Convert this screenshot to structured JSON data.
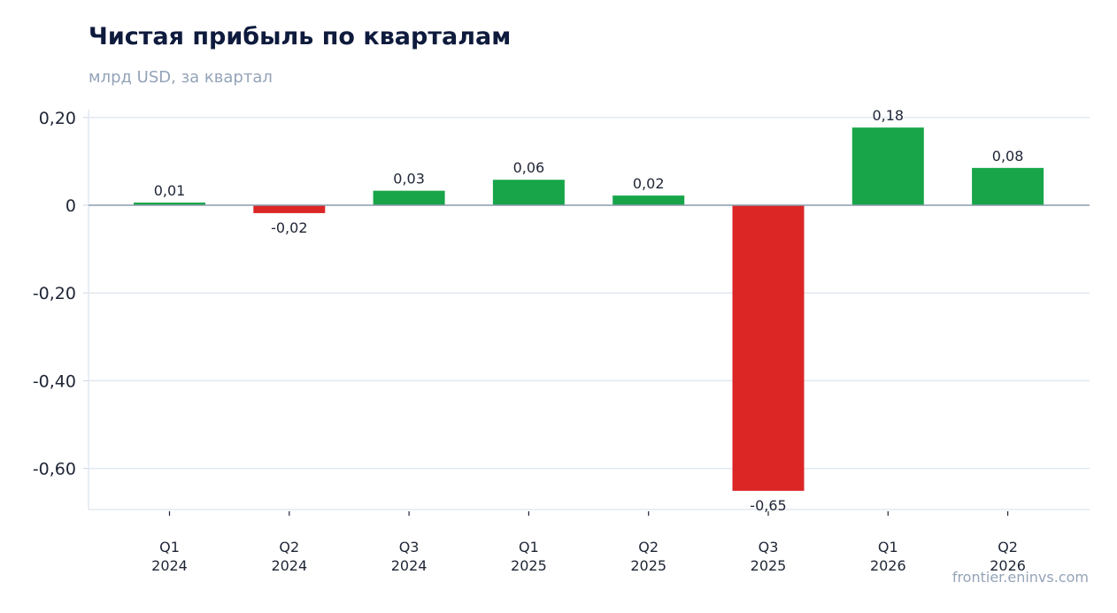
{
  "chart_data": {
    "type": "bar",
    "title": "Чистая прибыль по кварталам",
    "subtitle": "млрд USD, за квартал",
    "categories": [
      [
        "Q1",
        "2024"
      ],
      [
        "Q2",
        "2024"
      ],
      [
        "Q3",
        "2024"
      ],
      [
        "Q1",
        "2025"
      ],
      [
        "Q2",
        "2025"
      ],
      [
        "Q3",
        "2025"
      ],
      [
        "Q1",
        "2026"
      ],
      [
        "Q2",
        "2026"
      ]
    ],
    "values": [
      0.006,
      -0.018,
      0.033,
      0.058,
      0.022,
      -0.651,
      0.177,
      0.085
    ],
    "data_labels": [
      "0,01",
      "-0,02",
      "0,03",
      "0,06",
      "0,02",
      "-0,65",
      "0,18",
      "0,08"
    ],
    "ylim": [
      -0.69,
      0.22
    ],
    "yticks": [
      0.2,
      0,
      -0.2,
      -0.4,
      -0.6
    ],
    "ytick_labels": [
      "0,20",
      "0",
      "-0,20",
      "-0,40",
      "-0,60"
    ],
    "grid": true,
    "colors": {
      "positive": "#18a54a",
      "negative": "#dc2626",
      "zero_line": "#8a9bab",
      "grid": "#e2e8f0"
    }
  },
  "watermark": "frontier.eninvs.com"
}
